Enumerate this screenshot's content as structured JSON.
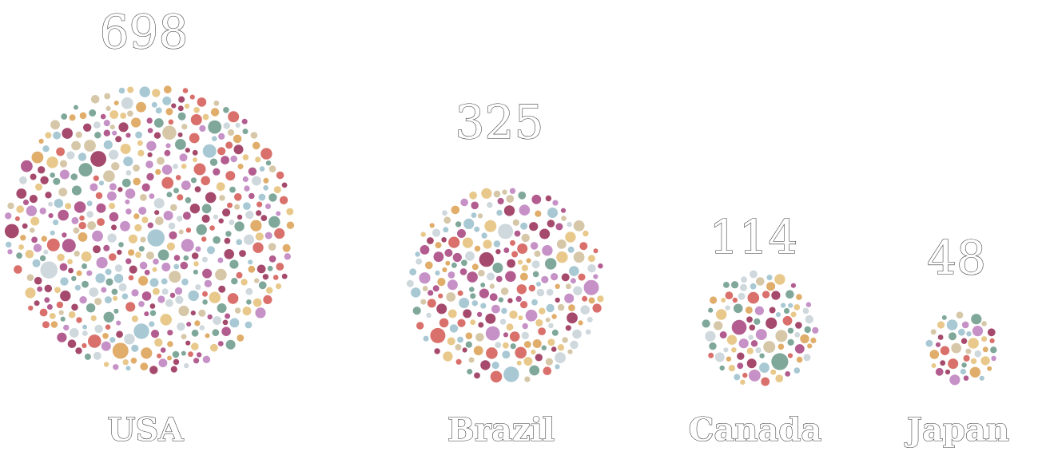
{
  "chart_data": {
    "type": "bubble-cluster",
    "title": "",
    "categories": [
      "USA",
      "Brazil",
      "Canada",
      "Japan"
    ],
    "values": [
      698,
      325,
      114,
      48
    ],
    "palette": [
      "#d9706b",
      "#b35c8f",
      "#e8c98b",
      "#a8c8d4",
      "#7fa89a",
      "#c691c6",
      "#d6c7a8",
      "#e0ad6a",
      "#a54a6c",
      "#cfd8dc"
    ]
  }
}
